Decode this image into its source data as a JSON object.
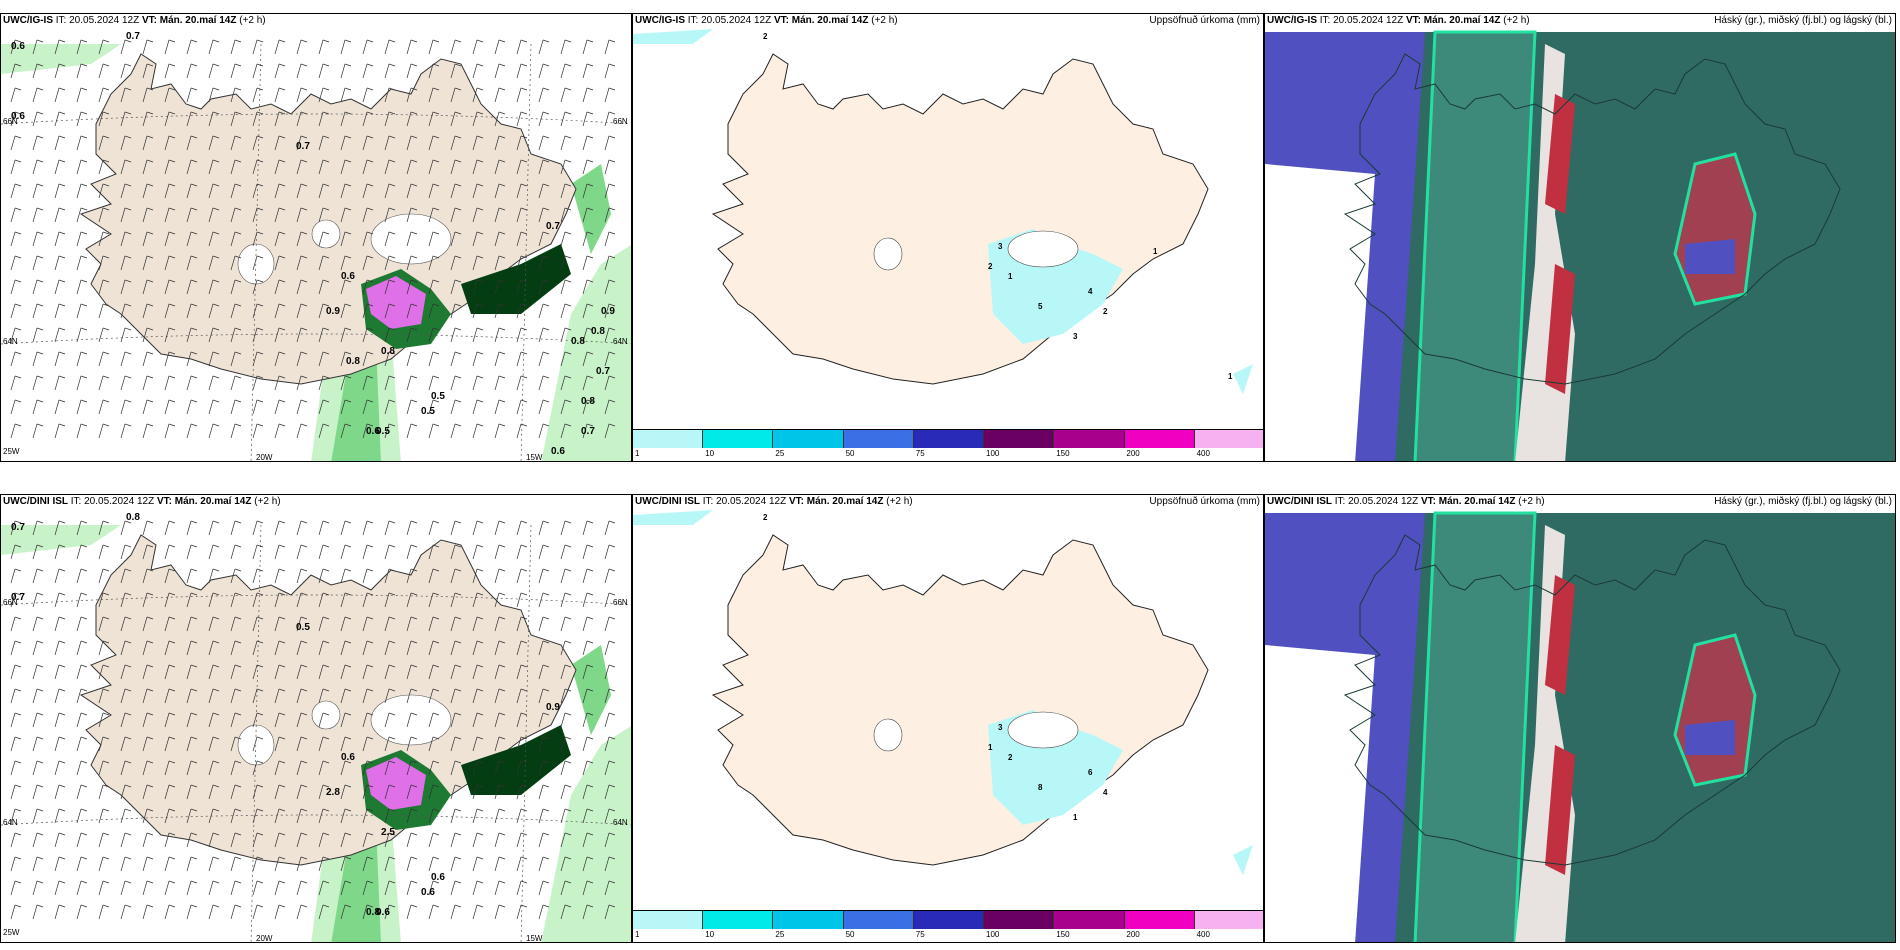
{
  "panels": [
    {
      "id": "tl",
      "model": "UWC/IG-IS",
      "it_prefix": "IT:",
      "it": "20.05.2024 12Z",
      "vt_prefix": "VT:",
      "vt": "Mán. 20.maí 14Z",
      "offset": "(+2 h)",
      "right_title": "",
      "kind": "wind"
    },
    {
      "id": "tm",
      "model": "UWC/IG-IS",
      "it_prefix": "IT:",
      "it": "20.05.2024 12Z",
      "vt_prefix": "VT:",
      "vt": "Mán. 20.maí 14Z",
      "offset": "(+2 h)",
      "right_title": "Uppsöfnuð úrkoma (mm)",
      "kind": "precip"
    },
    {
      "id": "tr",
      "model": "UWC/IG-IS",
      "it_prefix": "IT:",
      "it": "20.05.2024 12Z",
      "vt_prefix": "VT:",
      "vt": "Mán. 20.maí 14Z",
      "offset": "(+2 h)",
      "right_title": "Háský (gr.), miðský (fj.bl.) og lágský (bl.)",
      "kind": "cloud"
    },
    {
      "id": "bl",
      "model": "UWC/DINI ISL",
      "it_prefix": "IT:",
      "it": "20.05.2024 12Z",
      "vt_prefix": "VT:",
      "vt": "Mán. 20.maí 14Z",
      "offset": "(+2 h)",
      "right_title": "",
      "kind": "wind"
    },
    {
      "id": "bm",
      "model": "UWC/DINI ISL",
      "it_prefix": "IT:",
      "it": "20.05.2024 12Z",
      "vt_prefix": "VT:",
      "vt": "Mán. 20.maí 14Z",
      "offset": "(+2 h)",
      "right_title": "Uppsöfnuð úrkoma (mm)",
      "kind": "precip"
    },
    {
      "id": "br",
      "model": "UWC/DINI ISL",
      "it_prefix": "IT:",
      "it": "20.05.2024 12Z",
      "vt_prefix": "VT:",
      "vt": "Mán. 20.maí 14Z",
      "offset": "(+2 h)",
      "right_title": "Háský (gr.), miðský (fj.bl.) og lágský (bl.)",
      "kind": "cloud"
    }
  ],
  "colorbar": {
    "ticks": [
      "1",
      "10",
      "25",
      "50",
      "75",
      "100",
      "150",
      "200",
      "400"
    ],
    "colors": [
      "#b8f7f7",
      "#00eaea",
      "#00c4e8",
      "#3a6fe6",
      "#2a2ab8",
      "#6a0062",
      "#a8008c",
      "#f000c0",
      "#f7b0f0"
    ]
  },
  "grid_labels": {
    "lat66": "66N",
    "lat64": "64N",
    "lon25": "25W",
    "lon20": "20W",
    "lon15": "15W",
    "lat66r": "66N",
    "lat64r": "64N"
  },
  "tl_values": [
    "0.6",
    "0.7",
    "0.6",
    "0.7",
    "0.6",
    "0.7",
    "0.8",
    "0.9",
    "0.5",
    "0.5",
    "0.5",
    "0.6",
    "0.8",
    "0.8",
    "0.7",
    "0.8",
    "0.9",
    "0.8",
    "0.7",
    "0.6"
  ],
  "bl_values": [
    "0.7",
    "0.8",
    "0.7",
    "0.5",
    "0.6",
    "0.9",
    "2.5",
    "2.8",
    "0.6",
    "0.6",
    "0.6",
    "0.8"
  ],
  "tm_values": [
    "2",
    "3",
    "2",
    "1",
    "5",
    "4",
    "2",
    "3",
    "1",
    "1"
  ],
  "bm_values": [
    "2",
    "3",
    "1",
    "2",
    "8",
    "6",
    "4",
    "1"
  ],
  "colors": {
    "land": "#fdf0e2",
    "wind_land": "#efe3d6",
    "green_light": "#c8f2c8",
    "green_mid": "#7fd88a",
    "green_dark": "#1e7a32",
    "green_deep": "#043d12",
    "magenta": "#e070e8",
    "cloud_teal": "#2f6b63",
    "cloud_blue": "#5050c0",
    "cloud_red": "#c03040"
  }
}
